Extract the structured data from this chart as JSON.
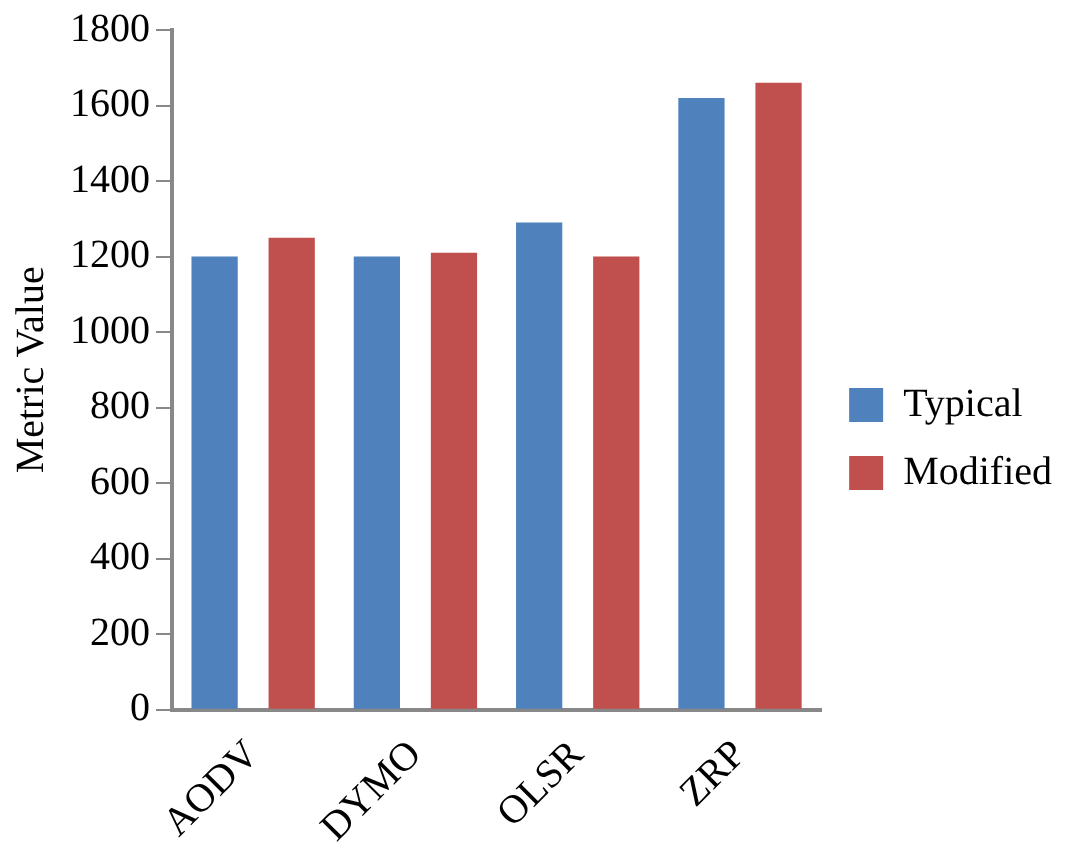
{
  "chart_data": {
    "type": "bar",
    "ylabel": "Metric Value",
    "categories": [
      "AODV",
      "DYMO",
      "OLSR",
      "ZRP"
    ],
    "series": [
      {
        "name": "Typical",
        "color": "#4f81bd",
        "values": [
          1200,
          1200,
          1290,
          1620
        ]
      },
      {
        "name": "Modified",
        "color": "#c0504d",
        "values": [
          1250,
          1210,
          1200,
          1660
        ]
      }
    ],
    "ylim": [
      0,
      1800
    ],
    "yticks": [
      0,
      200,
      400,
      600,
      800,
      1000,
      1200,
      1400,
      1600,
      1800
    ],
    "grid": false,
    "legend": "right"
  }
}
